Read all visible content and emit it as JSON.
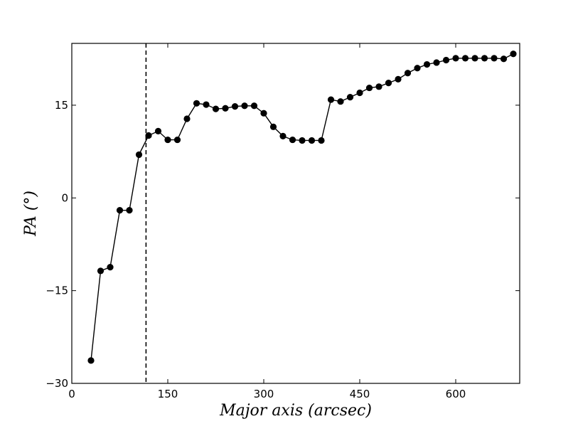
{
  "chart_data": {
    "type": "line",
    "xlabel": "Major axis (arcsec)",
    "ylabel": "PA (°)",
    "xlim": [
      0,
      700
    ],
    "ylim": [
      -30,
      25
    ],
    "x_ticks": [
      0,
      150,
      300,
      450,
      600
    ],
    "y_ticks": [
      -30,
      -15,
      0,
      15
    ],
    "x_tick_labels": [
      "0",
      "150",
      "300",
      "450",
      "600"
    ],
    "y_tick_labels": [
      "−30",
      "−15",
      "0",
      "15"
    ],
    "reference_line_x": 116,
    "grid": false,
    "series": [
      {
        "marker": "circle",
        "color": "#000000",
        "x": [
          30,
          45,
          60,
          75,
          90,
          105,
          120,
          135,
          150,
          165,
          180,
          195,
          210,
          225,
          240,
          255,
          270,
          285,
          300,
          315,
          330,
          345,
          360,
          375,
          390,
          405,
          420,
          435,
          450,
          465,
          480,
          495,
          510,
          525,
          540,
          555,
          570,
          585,
          600,
          615,
          630,
          645,
          660,
          675,
          690
        ],
        "y": [
          -26.3,
          -11.8,
          -11.2,
          -2.0,
          -2.0,
          7.0,
          10.1,
          10.8,
          9.4,
          9.4,
          12.8,
          15.3,
          15.1,
          14.4,
          14.5,
          14.8,
          14.9,
          14.9,
          13.7,
          11.5,
          10.0,
          9.4,
          9.3,
          9.3,
          9.3,
          15.9,
          15.6,
          16.3,
          17.0,
          17.8,
          18.0,
          18.6,
          19.2,
          20.2,
          21.0,
          21.6,
          21.9,
          22.3,
          22.6,
          22.6,
          22.6,
          22.6,
          22.6,
          22.5,
          23.3
        ]
      }
    ]
  }
}
